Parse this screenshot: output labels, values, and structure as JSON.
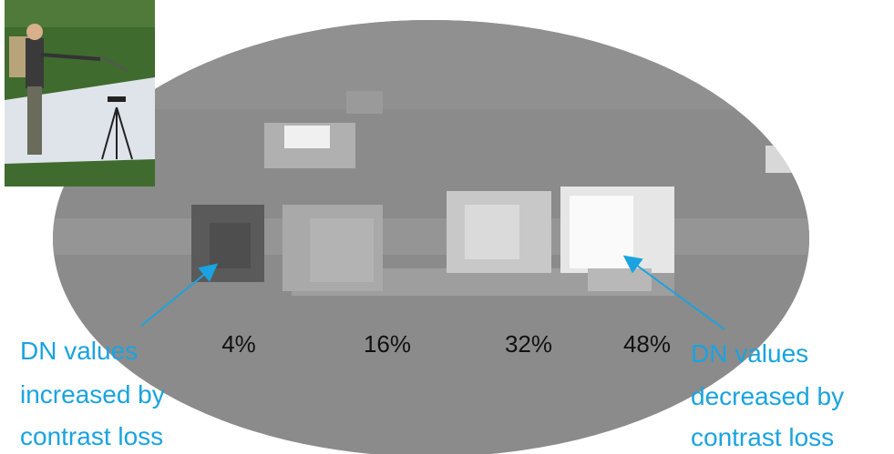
{
  "labels": [
    "4%",
    "16%",
    "32%",
    "48%"
  ],
  "annotations": [
    {
      "lines": [
        "DN values",
        "increased by",
        "contrast loss"
      ]
    },
    {
      "lines": [
        "DN values",
        "decreased by",
        "contrast loss"
      ]
    }
  ]
}
